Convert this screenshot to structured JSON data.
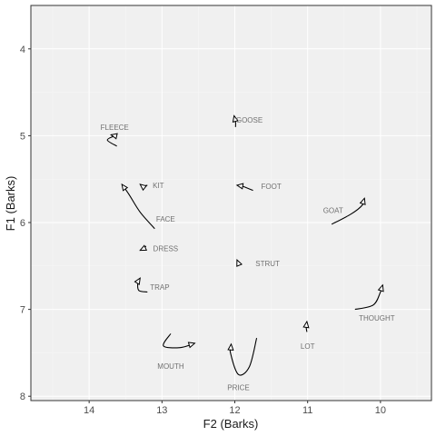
{
  "chart_data": {
    "type": "line",
    "xlabel": "F2 (Barks)",
    "ylabel": "F1 (Barks)",
    "xlim": [
      14.8,
      9.3
    ],
    "ylim": [
      3.5,
      8.05
    ],
    "x_reversed": true,
    "y_reversed": true,
    "x_ticks": [
      14,
      13,
      12,
      11,
      10
    ],
    "y_ticks": [
      4,
      5,
      6,
      7,
      8
    ],
    "grid": true,
    "panel_background": "#f0f0f0",
    "grid_major_color": "#ffffff",
    "grid_minor_color": "#f7f7f7",
    "trajectory_color": "#000000",
    "label_color": "#707070",
    "trajectories": [
      {
        "label": "FLEECE",
        "label_at": [
          13.65,
          4.9
        ],
        "points": [
          [
            13.62,
            5.12
          ],
          [
            13.75,
            5.05
          ],
          [
            13.65,
            5.0
          ],
          [
            13.7,
            4.99
          ]
        ]
      },
      {
        "label": "GOOSE",
        "label_at": [
          11.8,
          4.82
        ],
        "points": [
          [
            11.99,
            4.9
          ],
          [
            11.99,
            4.84
          ],
          [
            12.01,
            4.77
          ]
        ]
      },
      {
        "label": "KIT",
        "label_at": [
          13.05,
          5.57
        ],
        "points": [
          [
            13.2,
            5.57
          ],
          [
            13.27,
            5.58
          ],
          [
            13.3,
            5.56
          ]
        ]
      },
      {
        "label": "FOOT",
        "label_at": [
          11.5,
          5.58
        ],
        "points": [
          [
            11.75,
            5.63
          ],
          [
            11.9,
            5.58
          ],
          [
            11.97,
            5.57
          ]
        ]
      },
      {
        "label": "GOAT",
        "label_at": [
          10.65,
          5.86
        ],
        "points": [
          [
            10.67,
            6.02
          ],
          [
            10.4,
            5.9
          ],
          [
            10.25,
            5.8
          ],
          [
            10.22,
            5.72
          ]
        ]
      },
      {
        "label": "FACE",
        "label_at": [
          12.95,
          5.96
        ],
        "points": [
          [
            13.1,
            6.07
          ],
          [
            13.3,
            5.88
          ],
          [
            13.45,
            5.68
          ],
          [
            13.55,
            5.56
          ]
        ]
      },
      {
        "label": "DRESS",
        "label_at": [
          12.95,
          6.3
        ],
        "points": [
          [
            13.22,
            6.27
          ],
          [
            13.25,
            6.3
          ],
          [
            13.3,
            6.32
          ]
        ]
      },
      {
        "label": "STRUT",
        "label_at": [
          11.55,
          6.47
        ],
        "points": [
          [
            11.95,
            6.48
          ],
          [
            11.96,
            6.45
          ],
          [
            11.97,
            6.43
          ]
        ]
      },
      {
        "label": "TRAP",
        "label_at": [
          13.03,
          6.74
        ],
        "points": [
          [
            13.2,
            6.8
          ],
          [
            13.32,
            6.78
          ],
          [
            13.33,
            6.68
          ],
          [
            13.3,
            6.64
          ]
        ]
      },
      {
        "label": "THOUGHT",
        "label_at": [
          10.05,
          7.1
        ],
        "points": [
          [
            10.35,
            7.0
          ],
          [
            10.1,
            6.95
          ],
          [
            10.0,
            6.8
          ],
          [
            9.97,
            6.72
          ]
        ]
      },
      {
        "label": "LOT",
        "label_at": [
          11.0,
          7.42
        ],
        "points": [
          [
            11.01,
            7.26
          ],
          [
            11.02,
            7.2
          ],
          [
            11.01,
            7.14
          ]
        ]
      },
      {
        "label": "MOUTH",
        "label_at": [
          12.88,
          7.65
        ],
        "points": [
          [
            12.88,
            7.28
          ],
          [
            12.98,
            7.42
          ],
          [
            12.75,
            7.44
          ],
          [
            12.55,
            7.39
          ]
        ]
      },
      {
        "label": "PRICE",
        "label_at": [
          11.95,
          7.9
        ],
        "points": [
          [
            11.7,
            7.33
          ],
          [
            11.8,
            7.66
          ],
          [
            11.95,
            7.75
          ],
          [
            12.06,
            7.5
          ],
          [
            12.05,
            7.4
          ]
        ]
      }
    ]
  }
}
